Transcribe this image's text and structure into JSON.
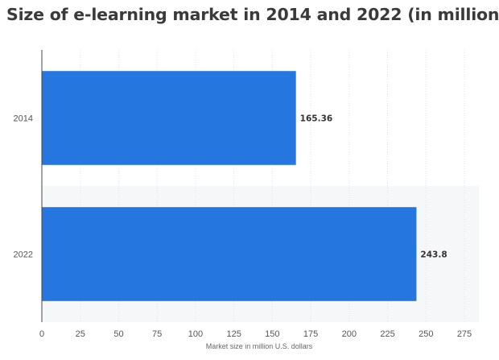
{
  "chart_data": {
    "type": "bar",
    "orientation": "horizontal",
    "title": "Size of e-learning market in 2014 and 2022 (in million",
    "categories": [
      "2014",
      "2022"
    ],
    "values": [
      165.36,
      243.8
    ],
    "value_labels": [
      "165.36",
      "243.8"
    ],
    "xlabel": "Market size in million U.S. dollars",
    "ylabel": "",
    "xlim": [
      0,
      275
    ],
    "xticks": [
      0,
      25,
      50,
      75,
      100,
      125,
      150,
      175,
      200,
      225,
      250,
      275
    ],
    "grid": true,
    "legend": "none",
    "bar_color": "#2676e0"
  }
}
